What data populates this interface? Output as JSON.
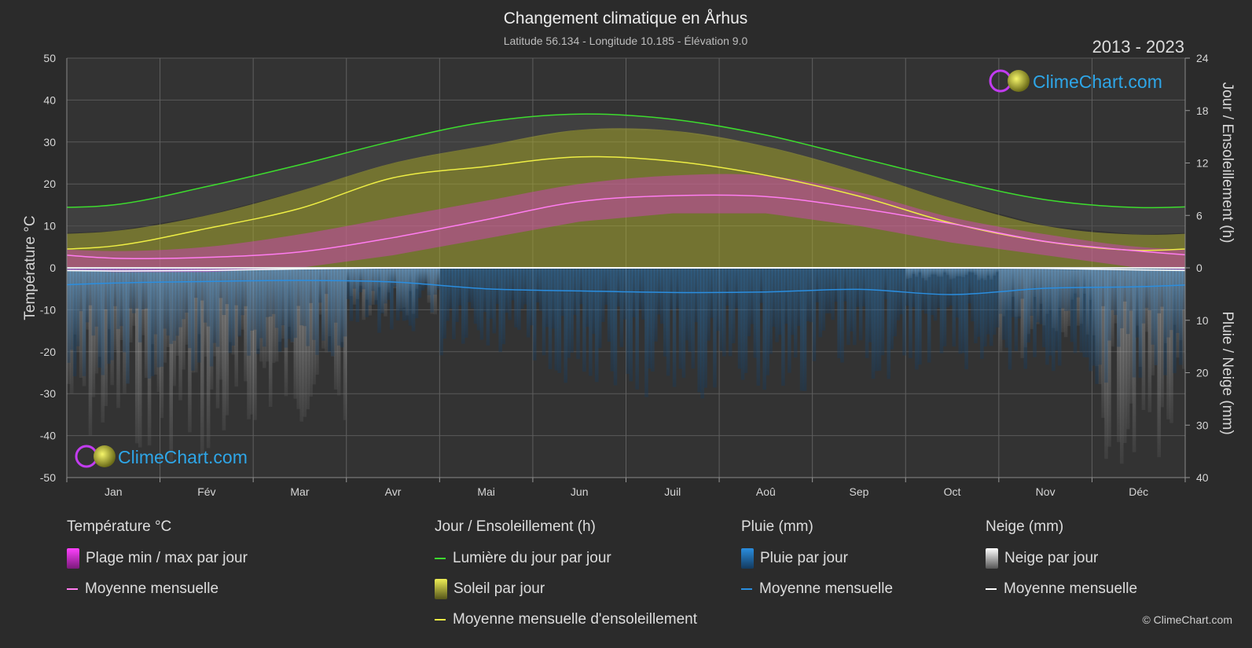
{
  "header": {
    "title": "Changement climatique en Århus",
    "subtitle": "Latitude 56.134 - Longitude 10.185 - Élévation 9.0",
    "years": "2013 - 2023"
  },
  "brand": {
    "name": "ClimeChart.com",
    "copyright": "© ClimeChart.com"
  },
  "colors": {
    "background": "#2b2b2b",
    "plot_bg": "#333333",
    "grid": "#5a5a5a",
    "temp_range": "#d63cc8",
    "temp_mean": "#ff7cf0",
    "daylight": "#3ddc2e",
    "sunshine_fill": "#a8a830",
    "sunshine_mean": "#eeee44",
    "rain": "#1f6fb0",
    "rain_mean": "#2a8ee0",
    "snow": "#8a8a8a",
    "snow_mean": "#ffffff"
  },
  "legend": {
    "temperature": {
      "title": "Température °C",
      "range": "Plage min / max par jour",
      "mean": "Moyenne mensuelle"
    },
    "sun": {
      "title": "Jour / Ensoleillement (h)",
      "daylight": "Lumière du jour par jour",
      "sunshine": "Soleil par jour",
      "mean": "Moyenne mensuelle d'ensoleillement"
    },
    "rain": {
      "title": "Pluie (mm)",
      "daily": "Pluie par jour",
      "mean": "Moyenne mensuelle"
    },
    "snow": {
      "title": "Neige (mm)",
      "daily": "Neige par jour",
      "mean": "Moyenne mensuelle"
    }
  },
  "chart_data": {
    "type": "area",
    "categories": [
      "Jan",
      "Fév",
      "Mar",
      "Avr",
      "Mai",
      "Jun",
      "Juil",
      "Aoû",
      "Sep",
      "Oct",
      "Nov",
      "Déc"
    ],
    "y_left": {
      "label": "Température °C",
      "ylim": [
        -50,
        50
      ],
      "ticks": [
        50,
        40,
        30,
        20,
        10,
        0,
        -10,
        -20,
        -30,
        -40,
        -50
      ]
    },
    "y_right_top": {
      "label": "Jour / Ensoleillement (h)",
      "ylim": [
        0,
        24
      ],
      "ticks": [
        24,
        18,
        12,
        6,
        0
      ]
    },
    "y_right_bottom": {
      "label": "Pluie / Neige (mm)",
      "ylim": [
        0,
        40
      ],
      "ticks": [
        10,
        20,
        30,
        40
      ]
    },
    "grid": true,
    "series": [
      {
        "name": "Plage min / max par jour",
        "unit": "°C",
        "min": [
          -1,
          -1,
          0,
          3,
          7,
          11,
          13,
          13,
          10,
          6,
          3,
          0
        ],
        "max": [
          4,
          5,
          8,
          12,
          16,
          20,
          22,
          22,
          18,
          12,
          8,
          5
        ]
      },
      {
        "name": "Moyenne mensuelle (température)",
        "unit": "°C",
        "values": [
          2.3,
          2.5,
          3.8,
          7.2,
          11.5,
          15.8,
          17.2,
          17.0,
          14.2,
          10.5,
          6.3,
          4.0
        ]
      },
      {
        "name": "Lumière du jour par jour",
        "unit": "h",
        "values": [
          7.2,
          9.3,
          11.8,
          14.5,
          16.7,
          17.6,
          17.0,
          15.2,
          12.6,
          10.0,
          7.8,
          6.9
        ]
      },
      {
        "name": "Soleil par jour",
        "unit": "h",
        "values": [
          4.2,
          6.0,
          8.8,
          12.0,
          14.0,
          15.8,
          15.7,
          13.9,
          11.0,
          7.6,
          4.8,
          3.8
        ]
      },
      {
        "name": "Moyenne mensuelle d'ensoleillement",
        "unit": "h",
        "values": [
          2.5,
          4.5,
          6.8,
          10.3,
          11.6,
          12.7,
          12.2,
          10.6,
          8.2,
          5.1,
          3.0,
          2.0
        ]
      },
      {
        "name": "Pluie par jour",
        "unit": "mm",
        "values": [
          18,
          16,
          14,
          10,
          16,
          18,
          20,
          19,
          17,
          16,
          16,
          18
        ]
      },
      {
        "name": "Moyenne mensuelle (pluie)",
        "unit": "mm",
        "values": [
          2.9,
          2.6,
          2.4,
          2.7,
          4.0,
          4.4,
          4.7,
          4.6,
          4.1,
          5.1,
          3.9,
          3.6
        ]
      },
      {
        "name": "Neige par jour",
        "unit": "mm",
        "values": [
          28,
          30,
          24,
          8,
          0,
          0,
          0,
          0,
          0,
          2,
          14,
          30
        ]
      },
      {
        "name": "Moyenne mensuelle (neige)",
        "unit": "mm",
        "values": [
          0.6,
          0.5,
          0.2,
          0,
          0,
          0,
          0,
          0,
          0,
          0,
          0.1,
          0.4
        ]
      }
    ]
  }
}
